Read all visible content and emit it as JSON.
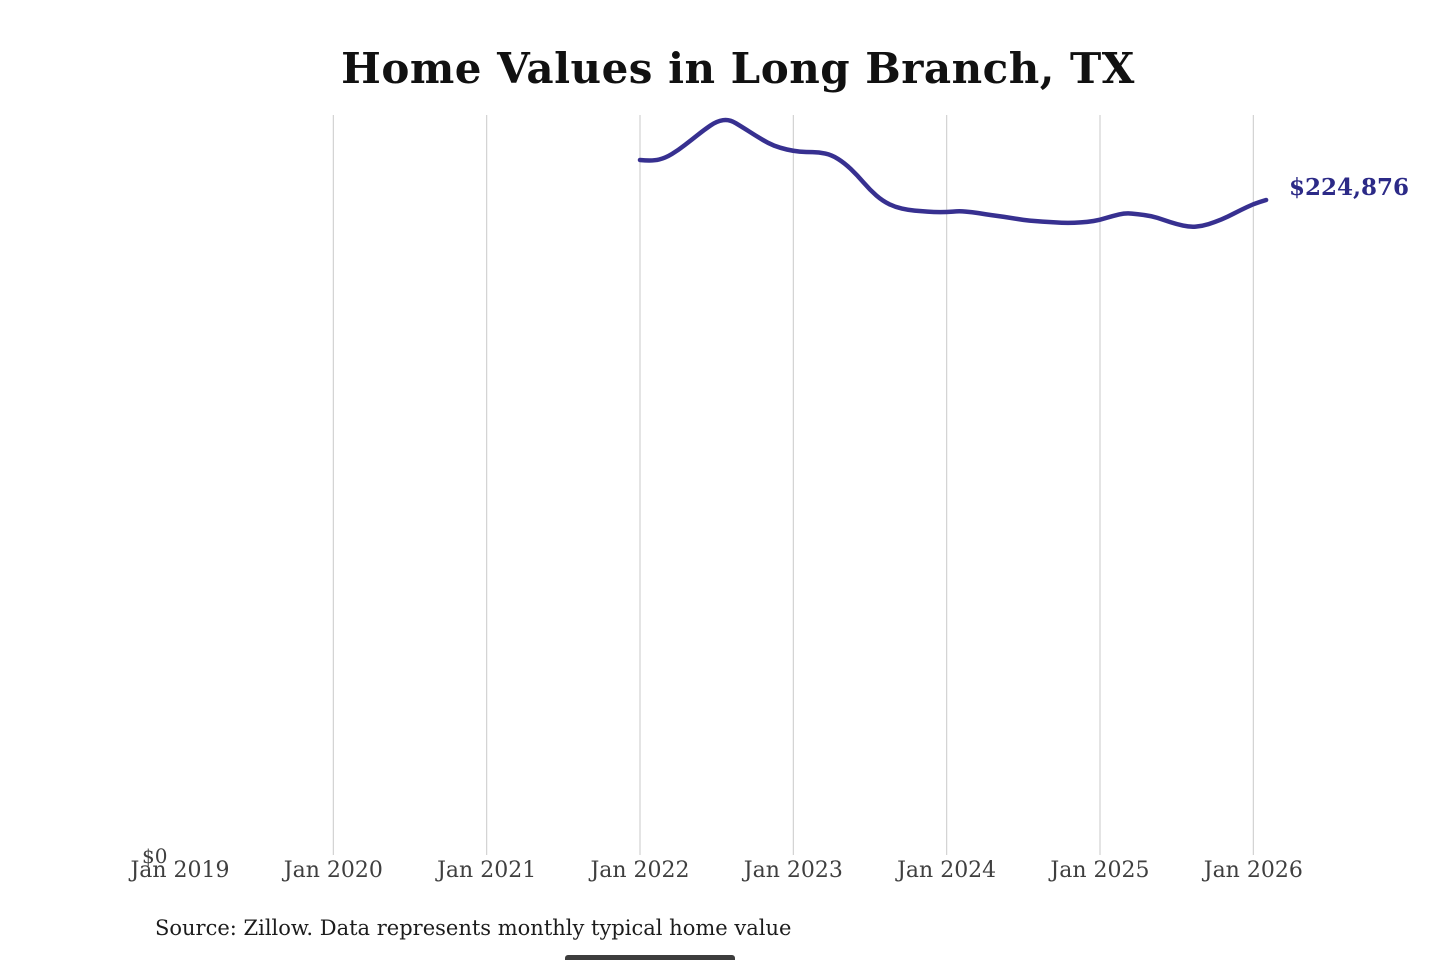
{
  "title": "Home Values in Long Branch, TX",
  "end_value_label": "$224,876",
  "zero_axis_label": "$0",
  "source_note": "Source: Zillow. Data represents monthly typical home value",
  "colors": {
    "background": "#ffffff",
    "title": "#111111",
    "line": "#373090",
    "end_label": "#2c2a87",
    "gridline": "#c9c9c9",
    "axis_text": "#3f3f3f",
    "source_text": "#1c1c1c",
    "bottom_bar": "#3d3d3d"
  },
  "chart_data": {
    "type": "line",
    "title": "Home Values in Long Branch, TX",
    "xlabel": "",
    "ylabel": "",
    "x_ticks": [
      "Jan 2019",
      "Jan 2020",
      "Jan 2021",
      "Jan 2022",
      "Jan 2023",
      "Jan 2024",
      "Jan 2025",
      "Jan 2026"
    ],
    "x_range_years": [
      2019,
      2026.17
    ],
    "ylim": [
      0,
      260000
    ],
    "grid": "vertical-only",
    "legend": "none",
    "end_value": 224876,
    "series": [
      {
        "name": "Monthly typical home value",
        "points": [
          {
            "date": "2022-01",
            "value": 238600
          },
          {
            "date": "2022-02",
            "value": 238200
          },
          {
            "date": "2022-03",
            "value": 239300
          },
          {
            "date": "2022-04",
            "value": 242000
          },
          {
            "date": "2022-05",
            "value": 245400
          },
          {
            "date": "2022-06",
            "value": 248900
          },
          {
            "date": "2022-07",
            "value": 251900
          },
          {
            "date": "2022-08",
            "value": 252600
          },
          {
            "date": "2022-09",
            "value": 249900
          },
          {
            "date": "2022-10",
            "value": 247100
          },
          {
            "date": "2022-11",
            "value": 244400
          },
          {
            "date": "2022-12",
            "value": 242700
          },
          {
            "date": "2023-01",
            "value": 241700
          },
          {
            "date": "2023-02",
            "value": 241300
          },
          {
            "date": "2023-03",
            "value": 241300
          },
          {
            "date": "2023-04",
            "value": 240300
          },
          {
            "date": "2023-05",
            "value": 237600
          },
          {
            "date": "2023-06",
            "value": 233400
          },
          {
            "date": "2023-07",
            "value": 228300
          },
          {
            "date": "2023-08",
            "value": 224500
          },
          {
            "date": "2023-09",
            "value": 222400
          },
          {
            "date": "2023-10",
            "value": 221400
          },
          {
            "date": "2023-11",
            "value": 221100
          },
          {
            "date": "2023-12",
            "value": 220700
          },
          {
            "date": "2024-01",
            "value": 220700
          },
          {
            "date": "2024-02",
            "value": 221100
          },
          {
            "date": "2024-03",
            "value": 220700
          },
          {
            "date": "2024-04",
            "value": 220000
          },
          {
            "date": "2024-05",
            "value": 219400
          },
          {
            "date": "2024-06",
            "value": 218700
          },
          {
            "date": "2024-07",
            "value": 218000
          },
          {
            "date": "2024-08",
            "value": 217600
          },
          {
            "date": "2024-09",
            "value": 217300
          },
          {
            "date": "2024-10",
            "value": 217000
          },
          {
            "date": "2024-11",
            "value": 217000
          },
          {
            "date": "2024-12",
            "value": 217300
          },
          {
            "date": "2025-01",
            "value": 218000
          },
          {
            "date": "2025-02",
            "value": 219400
          },
          {
            "date": "2025-03",
            "value": 220400
          },
          {
            "date": "2025-04",
            "value": 220000
          },
          {
            "date": "2025-05",
            "value": 219400
          },
          {
            "date": "2025-06",
            "value": 218000
          },
          {
            "date": "2025-07",
            "value": 216600
          },
          {
            "date": "2025-08",
            "value": 215600
          },
          {
            "date": "2025-09",
            "value": 215900
          },
          {
            "date": "2025-10",
            "value": 217300
          },
          {
            "date": "2025-11",
            "value": 219100
          },
          {
            "date": "2025-12",
            "value": 221400
          },
          {
            "date": "2026-01",
            "value": 223500
          },
          {
            "date": "2026-02",
            "value": 224876
          }
        ]
      }
    ]
  }
}
